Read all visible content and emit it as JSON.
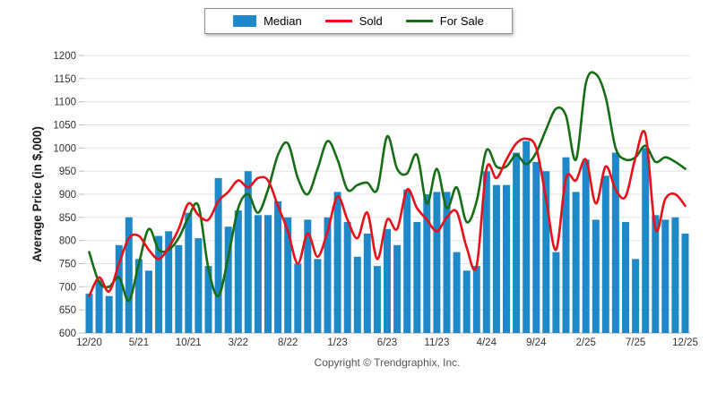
{
  "footer": {
    "copyright": "Copyright © Trendgraphix, Inc."
  },
  "chart_data": {
    "type": "combo",
    "title": "",
    "ylabel": "Average Price (in $,000)",
    "ylim": [
      600,
      1200
    ],
    "ytick_step": 50,
    "y_tick_labels": [
      "600",
      "650",
      "700",
      "750",
      "800",
      "850",
      "900",
      "950",
      "1000",
      "1050",
      "1100",
      "1150",
      "1200"
    ],
    "grid": true,
    "legend_position": "top-center",
    "x_tick_every": 5,
    "x_tick_labels": [
      "12/20",
      "5/21",
      "10/21",
      "3/22",
      "8/22",
      "1/23",
      "6/23",
      "11/23",
      "4/24",
      "9/24",
      "2/25",
      "7/25",
      "12/25"
    ],
    "categories": [
      "12/20",
      "1/21",
      "2/21",
      "3/21",
      "4/21",
      "5/21",
      "6/21",
      "7/21",
      "8/21",
      "9/21",
      "10/21",
      "11/21",
      "12/21",
      "1/22",
      "2/22",
      "3/22",
      "4/22",
      "5/22",
      "6/22",
      "7/22",
      "8/22",
      "9/22",
      "10/22",
      "11/22",
      "12/22",
      "1/23",
      "2/23",
      "3/23",
      "4/23",
      "5/23",
      "6/23",
      "7/23",
      "8/23",
      "9/23",
      "10/23",
      "11/23",
      "12/23",
      "1/24",
      "2/24",
      "3/24",
      "4/24",
      "5/24",
      "6/24",
      "7/24",
      "8/24",
      "9/24",
      "10/24",
      "11/24",
      "12/24",
      "1/25",
      "2/25",
      "3/25",
      "4/25",
      "5/25",
      "6/25",
      "7/25",
      "8/25",
      "9/25",
      "10/25",
      "11/25",
      "12/25"
    ],
    "series": [
      {
        "name": "Median",
        "kind": "bar",
        "color": "#1e88c8",
        "values": [
          685,
          715,
          680,
          790,
          850,
          760,
          735,
          810,
          820,
          790,
          860,
          805,
          745,
          935,
          830,
          865,
          950,
          855,
          855,
          885,
          850,
          750,
          845,
          760,
          850,
          905,
          840,
          765,
          815,
          745,
          825,
          790,
          910,
          840,
          900,
          905,
          905,
          775,
          735,
          745,
          950,
          920,
          920,
          990,
          1015,
          970,
          950,
          775,
          980,
          905,
          975,
          845,
          940,
          990,
          840,
          760,
          1000,
          855,
          845,
          850,
          815
        ]
      },
      {
        "name": "Sold",
        "kind": "line",
        "color": "#e8111a",
        "values": [
          680,
          720,
          690,
          750,
          805,
          810,
          780,
          760,
          785,
          825,
          880,
          855,
          845,
          885,
          905,
          930,
          915,
          935,
          930,
          875,
          820,
          750,
          815,
          765,
          820,
          895,
          845,
          805,
          860,
          760,
          845,
          825,
          910,
          870,
          845,
          820,
          850,
          862,
          785,
          745,
          955,
          935,
          975,
          1010,
          1020,
          1000,
          890,
          780,
          935,
          930,
          975,
          880,
          960,
          910,
          895,
          980,
          1030,
          825,
          890,
          900,
          875
        ]
      },
      {
        "name": "For Sale",
        "kind": "line",
        "color": "#156e15",
        "values": [
          775,
          710,
          700,
          720,
          670,
          750,
          825,
          780,
          780,
          805,
          850,
          875,
          740,
          680,
          765,
          870,
          900,
          860,
          910,
          985,
          1010,
          935,
          900,
          955,
          1015,
          975,
          910,
          920,
          925,
          910,
          1025,
          955,
          945,
          985,
          880,
          955,
          870,
          915,
          840,
          885,
          995,
          960,
          960,
          985,
          965,
          990,
          1040,
          1085,
          1070,
          975,
          1140,
          1160,
          1110,
          1000,
          975,
          980,
          1005,
          970,
          980,
          970,
          955
        ]
      }
    ]
  }
}
